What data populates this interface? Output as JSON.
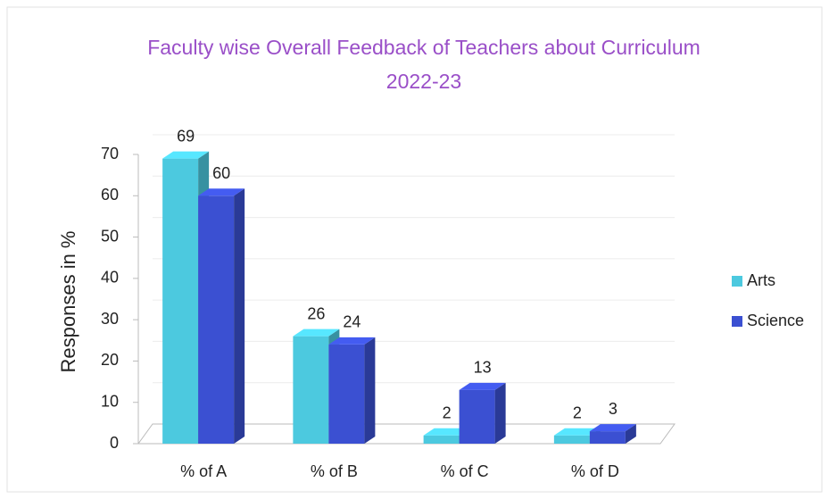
{
  "chart_data": {
    "type": "bar3d",
    "title": "Faculty wise Overall Feedback of Teachers about Curriculum 2022-23",
    "ylabel": "Responses in %",
    "categories": [
      "% of A",
      "% of B",
      "% of C",
      "% of D"
    ],
    "series": [
      {
        "name": "Arts",
        "color": "#4cc9df",
        "values": [
          69,
          26,
          2,
          2
        ]
      },
      {
        "name": "Science",
        "color": "#3b50d2",
        "values": [
          60,
          24,
          13,
          3
        ]
      }
    ],
    "ylim": [
      0,
      70
    ],
    "yticks": [
      0,
      10,
      20,
      30,
      40,
      50,
      60,
      70
    ],
    "grid": true,
    "legend": "right"
  }
}
